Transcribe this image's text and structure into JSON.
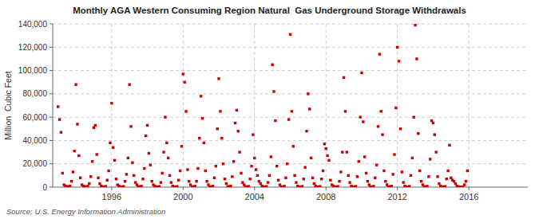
{
  "chart_data": {
    "type": "scatter",
    "title": "Monthly AGA Western Consuming Region Natural  Gas Underground Storage Withdrawals",
    "y_label": "Million  Cubic Feet",
    "source": "Source: U.S. Energy Information Administration",
    "color": "#CC0000",
    "marker": "square",
    "grid": true,
    "xlim": [
      1992.7,
      2019.3
    ],
    "xticks": [
      1996,
      2000,
      2004,
      2008,
      2012,
      2016
    ],
    "ylim": [
      0,
      140000
    ],
    "yticks": [
      0,
      {
        "value": 20000,
        "label": "20,000"
      },
      {
        "value": 40000,
        "label": "40,000"
      },
      {
        "value": 60000,
        "label": "60,000"
      },
      {
        "value": 80000,
        "label": "80,000"
      },
      {
        "value": 100000,
        "label": "100,000"
      },
      {
        "value": 120000,
        "label": "120,000"
      },
      {
        "value": 140000,
        "label": "140,000"
      }
    ],
    "x": [
      1993,
      1993.0833333333333,
      1993.1666666666667,
      1993.25,
      1993.3333333333333,
      1993.4166666666667,
      1993.5,
      1993.5833333333333,
      1993.6666666666667,
      1993.75,
      1993.8333333333333,
      1993.9166666666667,
      1994,
      1994.0833333333333,
      1994.1666666666667,
      1994.25,
      1994.3333333333333,
      1994.4166666666667,
      1994.5,
      1994.5833333333333,
      1994.6666666666667,
      1994.75,
      1994.8333333333333,
      1994.9166666666667,
      1995,
      1995.0833333333333,
      1995.1666666666667,
      1995.25,
      1995.3333333333333,
      1995.4166666666667,
      1995.5,
      1995.5833333333333,
      1995.6666666666667,
      1995.75,
      1995.8333333333333,
      1995.9166666666667,
      1996,
      1996.0833333333333,
      1996.1666666666667,
      1996.25,
      1996.3333333333333,
      1996.4166666666667,
      1996.5,
      1996.5833333333333,
      1996.6666666666667,
      1996.75,
      1996.8333333333333,
      1996.9166666666667,
      1997,
      1997.0833333333333,
      1997.1666666666667,
      1997.25,
      1997.3333333333333,
      1997.4166666666667,
      1997.5,
      1997.5833333333333,
      1997.6666666666667,
      1997.75,
      1997.8333333333333,
      1997.9166666666667,
      1998,
      1998.0833333333333,
      1998.1666666666667,
      1998.25,
      1998.3333333333333,
      1998.4166666666667,
      1998.5,
      1998.5833333333333,
      1998.6666666666667,
      1998.75,
      1998.8333333333333,
      1998.9166666666667,
      1999,
      1999.0833333333333,
      1999.1666666666667,
      1999.25,
      1999.3333333333333,
      1999.4166666666667,
      1999.5,
      1999.5833333333333,
      1999.6666666666667,
      1999.75,
      1999.8333333333333,
      1999.9166666666667,
      2000,
      2000.0833333333333,
      2000.1666666666667,
      2000.25,
      2000.3333333333333,
      2000.4166666666667,
      2000.5,
      2000.5833333333333,
      2000.6666666666667,
      2000.75,
      2000.8333333333333,
      2000.9166666666667,
      2001,
      2001.0833333333333,
      2001.1666666666667,
      2001.25,
      2001.3333333333333,
      2001.4166666666667,
      2001.5,
      2001.5833333333333,
      2001.6666666666667,
      2001.75,
      2001.8333333333333,
      2001.9166666666667,
      2002,
      2002.0833333333333,
      2002.1666666666667,
      2002.25,
      2002.3333333333333,
      2002.4166666666667,
      2002.5,
      2002.5833333333333,
      2002.6666666666667,
      2002.75,
      2002.8333333333333,
      2002.9166666666667,
      2003,
      2003.0833333333333,
      2003.1666666666667,
      2003.25,
      2003.3333333333333,
      2003.4166666666667,
      2003.5,
      2003.5833333333333,
      2003.6666666666667,
      2003.75,
      2003.8333333333333,
      2003.9166666666667,
      2004,
      2004.0833333333333,
      2004.1666666666667,
      2004.25,
      2004.3333333333333,
      2004.4166666666667,
      2004.5,
      2004.5833333333333,
      2004.6666666666667,
      2004.75,
      2004.8333333333333,
      2004.9166666666667,
      2005,
      2005.0833333333333,
      2005.1666666666667,
      2005.25,
      2005.3333333333333,
      2005.4166666666667,
      2005.5,
      2005.5833333333333,
      2005.6666666666667,
      2005.75,
      2005.8333333333333,
      2005.9166666666667,
      2006,
      2006.0833333333333,
      2006.1666666666667,
      2006.25,
      2006.3333333333333,
      2006.4166666666667,
      2006.5,
      2006.5833333333333,
      2006.6666666666667,
      2006.75,
      2006.8333333333333,
      2006.9166666666667,
      2007,
      2007.0833333333333,
      2007.1666666666667,
      2007.25,
      2007.3333333333333,
      2007.4166666666667,
      2007.5,
      2007.5833333333333,
      2007.6666666666667,
      2007.75,
      2007.8333333333333,
      2007.9166666666667,
      2008,
      2008.0833333333333,
      2008.1666666666667,
      2008.25,
      2008.3333333333333,
      2008.4166666666667,
      2008.5,
      2008.5833333333333,
      2008.6666666666667,
      2008.75,
      2008.8333333333333,
      2008.9166666666667,
      2009,
      2009.0833333333333,
      2009.1666666666667,
      2009.25,
      2009.3333333333333,
      2009.4166666666667,
      2009.5,
      2009.5833333333333,
      2009.6666666666667,
      2009.75,
      2009.8333333333333,
      2009.9166666666667,
      2010,
      2010.0833333333333,
      2010.1666666666667,
      2010.25,
      2010.3333333333333,
      2010.4166666666667,
      2010.5,
      2010.5833333333333,
      2010.6666666666667,
      2010.75,
      2010.8333333333333,
      2010.9166666666667,
      2011,
      2011.0833333333333,
      2011.1666666666667,
      2011.25,
      2011.3333333333333,
      2011.4166666666667,
      2011.5,
      2011.5833333333333,
      2011.6666666666667,
      2011.75,
      2011.8333333333333,
      2011.9166666666667,
      2012,
      2012.0833333333333,
      2012.1666666666667,
      2012.25,
      2012.3333333333333,
      2012.4166666666667,
      2012.5,
      2012.5833333333333,
      2012.6666666666667,
      2012.75,
      2012.8333333333333,
      2012.9166666666667,
      2013,
      2013.0833333333333,
      2013.1666666666667,
      2013.25,
      2013.3333333333333,
      2013.4166666666667,
      2013.5,
      2013.5833333333333,
      2013.6666666666667,
      2013.75,
      2013.8333333333333,
      2013.9166666666667,
      2014,
      2014.0833333333333,
      2014.1666666666667,
      2014.25,
      2014.3333333333333,
      2014.4166666666667,
      2014.5,
      2014.5833333333333,
      2014.6666666666667,
      2014.75,
      2014.8333333333333,
      2014.9166666666667,
      2015,
      2015.0833333333333,
      2015.1666666666667,
      2015.25,
      2015.3333333333333,
      2015.4166666666667,
      2015.5,
      2015.5833333333333,
      2015.6666666666667,
      2015.75,
      2015.8333333333333,
      2015.9166666666667
    ],
    "values": [
      69000,
      58000,
      47000,
      12000,
      2000,
      1000,
      500,
      400,
      1000,
      5000,
      13000,
      31000,
      88000,
      54000,
      27000,
      8000,
      2000,
      1000,
      400,
      300,
      800,
      3000,
      9000,
      22000,
      51000,
      53000,
      28000,
      8000,
      3000,
      1000,
      300,
      200,
      700,
      6000,
      14000,
      38000,
      72000,
      34000,
      23000,
      7000,
      2000,
      1000,
      300,
      200,
      600,
      5000,
      11000,
      25000,
      88000,
      52000,
      21000,
      10000,
      4000,
      2000,
      400,
      300,
      800,
      7000,
      16000,
      44000,
      53000,
      29000,
      19000,
      5000,
      2000,
      1000,
      300,
      200,
      600,
      4000,
      12000,
      30000,
      60000,
      38000,
      25000,
      10000,
      4000,
      1000,
      300,
      200,
      600,
      6000,
      14000,
      35000,
      97000,
      90000,
      65000,
      15000,
      5000,
      2000,
      400,
      300,
      800,
      5000,
      16000,
      42000,
      78000,
      59000,
      38000,
      14000,
      5000,
      2000,
      400,
      300,
      900,
      8000,
      18000,
      50000,
      93000,
      65000,
      42000,
      20000,
      7000,
      3000,
      500,
      400,
      1000,
      9000,
      22000,
      55000,
      66000,
      48000,
      30000,
      12000,
      4000,
      2000,
      400,
      300,
      700,
      7000,
      18000,
      45000,
      25000,
      15000,
      10000,
      5000,
      3000,
      1000,
      300,
      200,
      600,
      4000,
      10000,
      26000,
      105000,
      82000,
      57000,
      18000,
      6000,
      2000,
      400,
      300,
      800,
      8000,
      20000,
      58000,
      131000,
      65000,
      35000,
      10000,
      4000,
      1000,
      300,
      200,
      700,
      7000,
      17000,
      48000,
      80000,
      67000,
      25000,
      8000,
      3000,
      1000,
      300,
      200,
      600,
      7000,
      14000,
      37000,
      33000,
      27000,
      23000,
      6000,
      2000,
      1000,
      300,
      200,
      600,
      5000,
      13000,
      30000,
      94000,
      65000,
      30000,
      10000,
      4000,
      1000,
      300,
      200,
      700,
      9000,
      22000,
      60000,
      98000,
      56000,
      26000,
      12000,
      5000,
      2000,
      400,
      300,
      800,
      8000,
      19000,
      52000,
      114000,
      65000,
      45000,
      14000,
      5000,
      2000,
      400,
      300,
      900,
      11000,
      28000,
      68000,
      120000,
      108000,
      50000,
      13000,
      4000,
      1000,
      300,
      200,
      700,
      10000,
      25000,
      60000,
      139000,
      110000,
      46000,
      14000,
      5000,
      2000,
      400,
      300,
      800,
      9000,
      24000,
      57000,
      55000,
      45000,
      30000,
      9000,
      3000,
      1000,
      300,
      200,
      600,
      7000,
      14000,
      36000,
      8000,
      6000,
      5000,
      3000,
      1000,
      400,
      200,
      100,
      300,
      2000,
      5000,
      14000
    ]
  }
}
